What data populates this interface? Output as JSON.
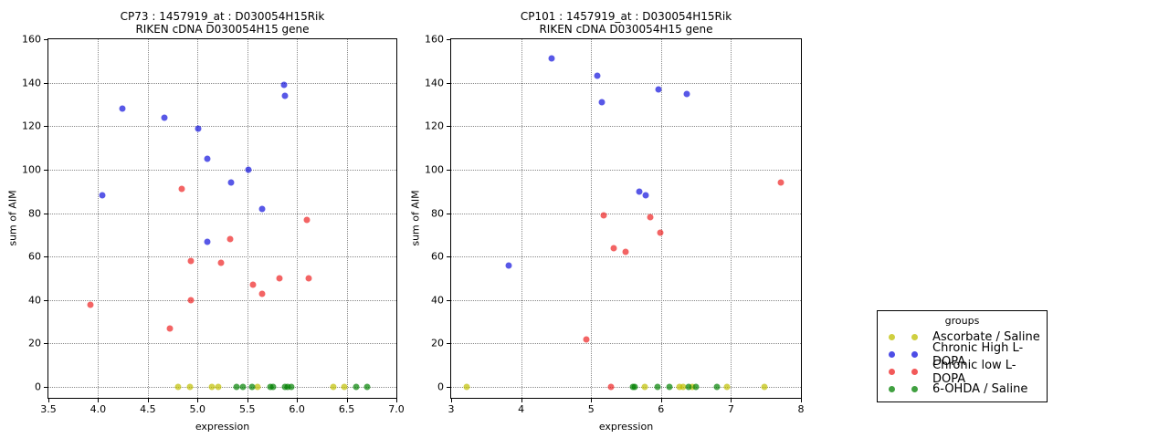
{
  "legend": {
    "title": "groups",
    "items": [
      {
        "label": "Ascorbate / Saline",
        "color": "#bfbf00"
      },
      {
        "label": "Chronic High L-DOPA",
        "color": "#1111dd"
      },
      {
        "label": "Chronic low L-DOPA",
        "color": "#ee2222"
      },
      {
        "label": "6-OHDA / Saline",
        "color": "#008000"
      }
    ]
  },
  "chart_data": [
    {
      "type": "scatter",
      "title_line1": "CP73 : 1457919_at : D030054H15Rik",
      "title_line2": "RIKEN cDNA D030054H15 gene",
      "xlabel": "expression",
      "ylabel": "sum of AIM",
      "xlim": [
        3.5,
        7.0
      ],
      "ylim": [
        -5,
        160
      ],
      "grid": "dotted",
      "xtick_values": [
        3.5,
        4.0,
        4.5,
        5.0,
        5.5,
        6.0,
        6.5,
        7.0
      ],
      "xtick_labels": [
        "3.5",
        "4.0",
        "4.5",
        "5.0",
        "5.5",
        "6.0",
        "6.5",
        "7.0"
      ],
      "ytick_values": [
        0,
        20,
        40,
        60,
        80,
        100,
        120,
        140,
        160
      ],
      "ytick_labels": [
        "0",
        "20",
        "40",
        "60",
        "80",
        "100",
        "120",
        "140",
        "160"
      ],
      "series": [
        {
          "name": "Ascorbate / Saline",
          "color": "#bfbf00",
          "points": [
            [
              4.8,
              0
            ],
            [
              4.92,
              0
            ],
            [
              5.14,
              0
            ],
            [
              5.21,
              0
            ],
            [
              5.6,
              0
            ],
            [
              6.37,
              0
            ],
            [
              6.48,
              0
            ]
          ]
        },
        {
          "name": "Chronic High L-DOPA",
          "color": "#1111dd",
          "points": [
            [
              4.04,
              88
            ],
            [
              4.24,
              128
            ],
            [
              4.67,
              124
            ],
            [
              5.01,
              119
            ],
            [
              5.1,
              105
            ],
            [
              5.1,
              67
            ],
            [
              5.34,
              94
            ],
            [
              5.51,
              100
            ],
            [
              5.65,
              82
            ],
            [
              5.87,
              139
            ],
            [
              5.88,
              134
            ]
          ]
        },
        {
          "name": "Chronic low L-DOPA",
          "color": "#ee2222",
          "points": [
            [
              3.92,
              38
            ],
            [
              4.72,
              27
            ],
            [
              4.84,
              91
            ],
            [
              4.93,
              58
            ],
            [
              4.93,
              40
            ],
            [
              5.24,
              57
            ],
            [
              5.33,
              68
            ],
            [
              5.56,
              47
            ],
            [
              5.65,
              43
            ],
            [
              5.82,
              50
            ],
            [
              6.1,
              77
            ],
            [
              6.12,
              50
            ]
          ]
        },
        {
          "name": "6-OHDA / Saline",
          "color": "#008000",
          "points": [
            [
              5.39,
              0
            ],
            [
              5.46,
              0
            ],
            [
              5.55,
              0
            ],
            [
              5.73,
              0
            ],
            [
              5.76,
              0
            ],
            [
              5.88,
              0
            ],
            [
              5.91,
              0
            ],
            [
              5.94,
              0
            ],
            [
              6.6,
              0
            ],
            [
              6.71,
              0
            ]
          ]
        }
      ]
    },
    {
      "type": "scatter",
      "title_line1": "CP101 : 1457919_at : D030054H15Rik",
      "title_line2": "RIKEN cDNA D030054H15 gene",
      "xlabel": "expression",
      "ylabel": "sum of AIM",
      "xlim": [
        3,
        8
      ],
      "ylim": [
        -5,
        160
      ],
      "grid": "dotted",
      "xtick_values": [
        3,
        4,
        5,
        6,
        7,
        8
      ],
      "xtick_labels": [
        "3",
        "4",
        "5",
        "6",
        "7",
        "8"
      ],
      "ytick_values": [
        0,
        20,
        40,
        60,
        80,
        100,
        120,
        140,
        160
      ],
      "ytick_labels": [
        "0",
        "20",
        "40",
        "60",
        "80",
        "100",
        "120",
        "140",
        "160"
      ],
      "series": [
        {
          "name": "Ascorbate / Saline",
          "color": "#bfbf00",
          "points": [
            [
              3.22,
              0
            ],
            [
              5.77,
              0
            ],
            [
              6.26,
              0
            ],
            [
              6.31,
              0
            ],
            [
              6.44,
              0
            ],
            [
              6.94,
              0
            ],
            [
              7.48,
              0
            ]
          ]
        },
        {
          "name": "Chronic High L-DOPA",
          "color": "#1111dd",
          "points": [
            [
              3.82,
              56
            ],
            [
              4.44,
              151
            ],
            [
              5.09,
              143
            ],
            [
              5.16,
              131
            ],
            [
              5.69,
              90
            ],
            [
              5.78,
              88
            ],
            [
              5.96,
              137
            ],
            [
              6.37,
              135
            ]
          ]
        },
        {
          "name": "Chronic low L-DOPA",
          "color": "#ee2222",
          "points": [
            [
              4.93,
              22
            ],
            [
              5.18,
              79
            ],
            [
              5.28,
              0
            ],
            [
              5.32,
              64
            ],
            [
              5.49,
              62
            ],
            [
              5.84,
              78
            ],
            [
              5.99,
              71
            ],
            [
              7.71,
              94
            ]
          ]
        },
        {
          "name": "6-OHDA / Saline",
          "color": "#008000",
          "points": [
            [
              5.6,
              0
            ],
            [
              5.63,
              0
            ],
            [
              5.95,
              0
            ],
            [
              6.12,
              0
            ],
            [
              6.39,
              0
            ],
            [
              6.5,
              0
            ],
            [
              6.8,
              0
            ]
          ]
        }
      ]
    }
  ]
}
